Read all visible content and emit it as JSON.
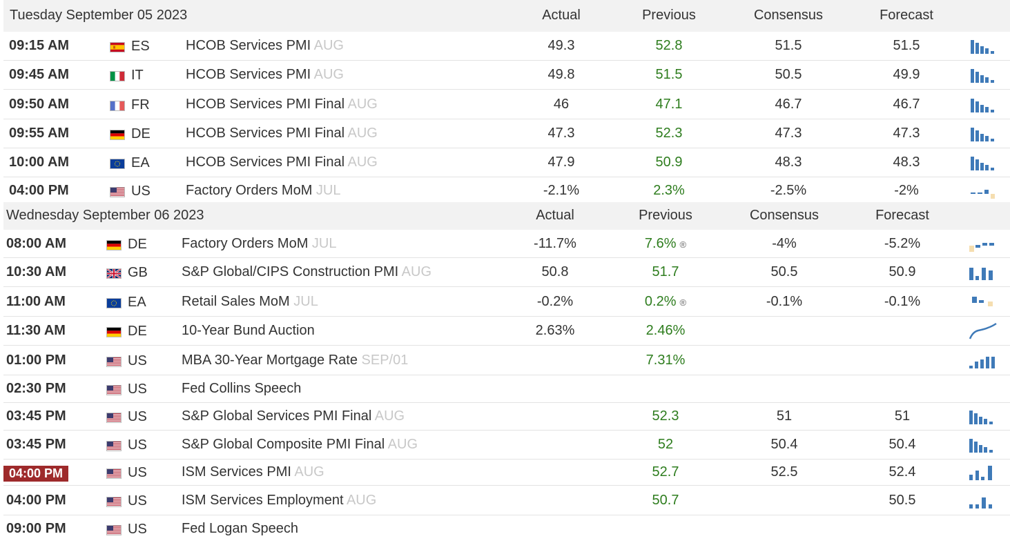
{
  "days": [
    {
      "date": "Tuesday September 05 2023",
      "headers": {
        "actual": "Actual",
        "previous": "Previous",
        "consensus": "Consensus",
        "forecast": "Forecast"
      },
      "rows": [
        {
          "time": "09:15 AM",
          "flag": "es",
          "country": "ES",
          "event": "HCOB Services PMI",
          "period": "AUG",
          "actual": "49.3",
          "previous": "52.8",
          "consensus": "51.5",
          "forecast": "51.5",
          "spark": "bars-down"
        },
        {
          "time": "09:45 AM",
          "flag": "it",
          "country": "IT",
          "event": "HCOB Services PMI",
          "period": "AUG",
          "actual": "49.8",
          "previous": "51.5",
          "consensus": "50.5",
          "forecast": "49.9",
          "spark": "bars-down"
        },
        {
          "time": "09:50 AM",
          "flag": "fr",
          "country": "FR",
          "event": "HCOB Services PMI Final",
          "period": "AUG",
          "actual": "46",
          "previous": "47.1",
          "consensus": "46.7",
          "forecast": "46.7",
          "spark": "bars-down"
        },
        {
          "time": "09:55 AM",
          "flag": "de",
          "country": "DE",
          "event": "HCOB Services PMI Final",
          "period": "AUG",
          "actual": "47.3",
          "previous": "52.3",
          "consensus": "47.3",
          "forecast": "47.3",
          "spark": "bars-down"
        },
        {
          "time": "10:00 AM",
          "flag": "eu",
          "country": "EA",
          "event": "HCOB Services PMI Final",
          "period": "AUG",
          "actual": "47.9",
          "previous": "50.9",
          "consensus": "48.3",
          "forecast": "48.3",
          "spark": "bars-down"
        },
        {
          "time": "04:00 PM",
          "flag": "us",
          "country": "US",
          "event": "Factory Orders MoM",
          "period": "JUL",
          "actual": "-2.1%",
          "previous": "2.3%",
          "consensus": "-2.5%",
          "forecast": "-2%",
          "spark": "dash-mixed"
        }
      ]
    },
    {
      "date": "Wednesday September 06 2023",
      "headers": {
        "actual": "Actual",
        "previous": "Previous",
        "consensus": "Consensus",
        "forecast": "Forecast"
      },
      "rows": [
        {
          "time": "08:00 AM",
          "flag": "de",
          "country": "DE",
          "event": "Factory Orders MoM",
          "period": "JUL",
          "actual": "-11.7%",
          "previous": "7.6%",
          "revised": "®",
          "consensus": "-4%",
          "forecast": "-5.2%",
          "spark": "neg-first"
        },
        {
          "time": "10:30 AM",
          "flag": "gb",
          "country": "GB",
          "event": "S&P Global/CIPS Construction PMI",
          "period": "AUG",
          "actual": "50.8",
          "previous": "51.7",
          "consensus": "50.5",
          "forecast": "50.9",
          "spark": "bars-even"
        },
        {
          "time": "11:00 AM",
          "flag": "eu",
          "country": "EA",
          "event": "Retail Sales MoM",
          "period": "JUL",
          "actual": "-0.2%",
          "previous": "0.2%",
          "revised": "®",
          "consensus": "-0.1%",
          "forecast": "-0.1%",
          "spark": "small-mixed"
        },
        {
          "time": "11:30 AM",
          "flag": "de",
          "country": "DE",
          "event": "10-Year Bund Auction",
          "period": "",
          "actual": "2.63%",
          "previous": "2.46%",
          "consensus": "",
          "forecast": "",
          "spark": "line-up"
        },
        {
          "time": "01:00 PM",
          "flag": "us",
          "country": "US",
          "event": "MBA 30-Year Mortgage Rate",
          "period": "SEP/01",
          "actual": "",
          "previous": "7.31%",
          "consensus": "",
          "forecast": "",
          "spark": "bars-up"
        },
        {
          "time": "02:30 PM",
          "flag": "us",
          "country": "US",
          "event": "Fed Collins Speech",
          "period": "",
          "actual": "",
          "previous": "",
          "consensus": "",
          "forecast": "",
          "spark": "none"
        },
        {
          "time": "03:45 PM",
          "flag": "us",
          "country": "US",
          "event": "S&P Global Services PMI Final",
          "period": "AUG",
          "actual": "",
          "previous": "52.3",
          "consensus": "51",
          "forecast": "51",
          "spark": "bars-down"
        },
        {
          "time": "03:45 PM",
          "flag": "us",
          "country": "US",
          "event": "S&P Global Composite PMI Final",
          "period": "AUG",
          "actual": "",
          "previous": "52",
          "consensus": "50.4",
          "forecast": "50.4",
          "spark": "bars-down"
        },
        {
          "time": "04:00 PM",
          "flag": "us",
          "country": "US",
          "event": "ISM Services PMI",
          "period": "AUG",
          "actual": "",
          "previous": "52.7",
          "consensus": "52.5",
          "forecast": "52.4",
          "spark": "bars-up2",
          "live": true
        },
        {
          "time": "04:00 PM",
          "flag": "us",
          "country": "US",
          "event": "ISM Services Employment",
          "period": "AUG",
          "actual": "",
          "previous": "50.7",
          "consensus": "",
          "forecast": "50.5",
          "spark": "bars-mid"
        },
        {
          "time": "09:00 PM",
          "flag": "us",
          "country": "US",
          "event": "Fed Logan Speech",
          "period": "",
          "actual": "",
          "previous": "",
          "consensus": "",
          "forecast": "",
          "spark": "none"
        }
      ]
    }
  ],
  "colors": {
    "spark_blue": "#3f7ab8",
    "spark_neg": "#f5deb0",
    "previous_green": "#2e7d1e",
    "live_badge": "#9e2a2b"
  }
}
